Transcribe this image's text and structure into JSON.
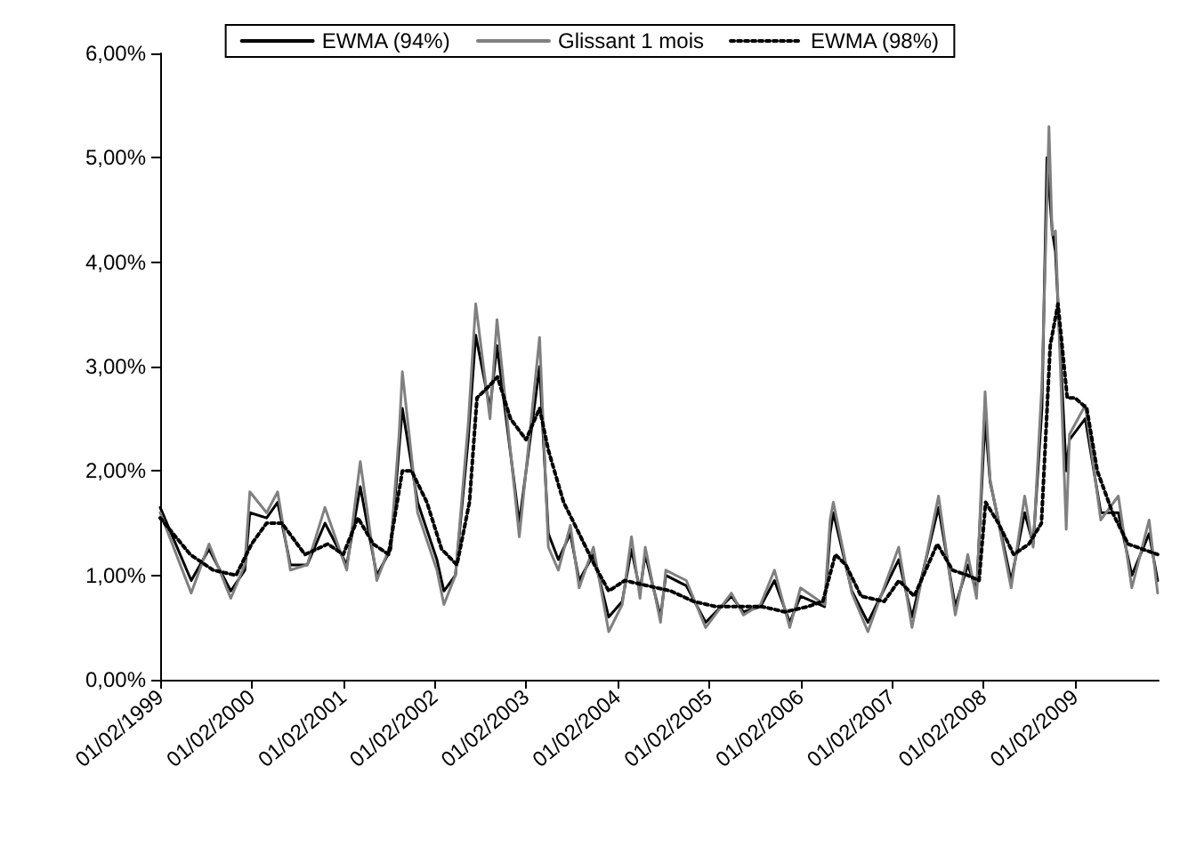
{
  "chart_data": {
    "type": "line",
    "xlim": [
      "1999-02-01",
      "2010-01-01"
    ],
    "xticks": [
      {
        "value": "1999-02-01",
        "label": "01/02/1999"
      },
      {
        "value": "2000-02-01",
        "label": "01/02/2000"
      },
      {
        "value": "2001-02-01",
        "label": "01/02/2001"
      },
      {
        "value": "2002-02-01",
        "label": "01/02/2002"
      },
      {
        "value": "2003-02-01",
        "label": "01/02/2003"
      },
      {
        "value": "2004-02-01",
        "label": "01/02/2004"
      },
      {
        "value": "2005-02-01",
        "label": "01/02/2005"
      },
      {
        "value": "2006-02-01",
        "label": "01/02/2006"
      },
      {
        "value": "2007-02-01",
        "label": "01/02/2007"
      },
      {
        "value": "2008-02-01",
        "label": "01/02/2008"
      },
      {
        "value": "2009-02-01",
        "label": "01/02/2009"
      }
    ],
    "ylim": [
      0,
      6
    ],
    "yticks": [
      {
        "value": 0,
        "label": "0,00%"
      },
      {
        "value": 1,
        "label": "1,00%"
      },
      {
        "value": 2,
        "label": "2,00%"
      },
      {
        "value": 3,
        "label": "3,00%"
      },
      {
        "value": 4,
        "label": "4,00%"
      },
      {
        "value": 5,
        "label": "5,00%"
      },
      {
        "value": 6,
        "label": "6,00%"
      }
    ],
    "grid": false,
    "legend": "top",
    "marker": "none",
    "series": [
      {
        "name": "EWMA (94%)",
        "color": "#000000",
        "line_style": "solid",
        "x": [
          "1999-02-01",
          "1999-06-05",
          "1999-08-15",
          "1999-11-10",
          "2000-01-05",
          "2000-01-25",
          "2000-04-01",
          "2000-05-15",
          "2000-07-05",
          "2000-09-10",
          "2000-11-20",
          "2001-02-15",
          "2001-04-10",
          "2001-06-15",
          "2001-08-10",
          "2001-09-25",
          "2001-11-25",
          "2002-02-10",
          "2002-03-10",
          "2002-04-25",
          "2002-06-15",
          "2002-07-15",
          "2002-09-10",
          "2002-10-08",
          "2003-01-05",
          "2003-03-27",
          "2003-05-01",
          "2003-06-10",
          "2003-07-28",
          "2003-09-01",
          "2003-10-28",
          "2003-12-28",
          "2004-02-20",
          "2004-03-28",
          "2004-05-01",
          "2004-05-22",
          "2004-07-22",
          "2004-08-12",
          "2004-11-02",
          "2005-01-18",
          "2005-05-01",
          "2005-06-18",
          "2005-08-25",
          "2005-10-20",
          "2005-12-20",
          "2006-02-01",
          "2006-05-08",
          "2006-05-30",
          "2006-06-12",
          "2006-08-25",
          "2006-10-28",
          "2007-02-28",
          "2007-04-22",
          "2007-08-06",
          "2007-10-12",
          "2007-12-01",
          "2008-01-05",
          "2008-02-08",
          "2008-02-28",
          "2008-05-22",
          "2008-07-15",
          "2008-08-18",
          "2008-09-22",
          "2008-10-12",
          "2008-11-02",
          "2008-11-15",
          "2008-12-28",
          "2009-01-10",
          "2009-03-14",
          "2009-05-15",
          "2009-07-24",
          "2009-09-16",
          "2009-11-24",
          "2009-12-28"
        ],
        "values": [
          1.65,
          0.95,
          1.25,
          0.85,
          1.05,
          1.6,
          1.55,
          1.7,
          1.1,
          1.1,
          1.5,
          1.1,
          1.85,
          1.0,
          1.25,
          2.6,
          1.7,
          1.15,
          0.85,
          1.0,
          2.3,
          3.3,
          2.6,
          3.2,
          1.5,
          3.0,
          1.4,
          1.15,
          1.4,
          0.95,
          1.2,
          0.6,
          0.75,
          1.25,
          0.85,
          1.2,
          0.6,
          1.0,
          0.9,
          0.55,
          0.8,
          0.65,
          0.7,
          0.95,
          0.55,
          0.8,
          0.7,
          1.4,
          1.6,
          0.85,
          0.55,
          1.15,
          0.6,
          1.65,
          0.7,
          1.1,
          0.85,
          2.5,
          1.9,
          0.95,
          1.6,
          1.3,
          2.6,
          5.0,
          4.3,
          4.1,
          2.0,
          2.3,
          2.5,
          1.6,
          1.6,
          1.0,
          1.4,
          0.95
        ]
      },
      {
        "name": "Glissant 1 mois",
        "color": "#808080",
        "line_style": "solid",
        "x": [
          "1999-02-01",
          "1999-06-05",
          "1999-08-15",
          "1999-11-10",
          "2000-01-05",
          "2000-01-25",
          "2000-04-01",
          "2000-05-15",
          "2000-07-05",
          "2000-09-10",
          "2000-11-20",
          "2001-02-15",
          "2001-04-10",
          "2001-06-15",
          "2001-08-10",
          "2001-09-12",
          "2001-09-25",
          "2001-11-25",
          "2002-02-10",
          "2002-03-10",
          "2002-04-25",
          "2002-06-15",
          "2002-07-15",
          "2002-09-10",
          "2002-10-08",
          "2003-01-05",
          "2003-03-27",
          "2003-05-01",
          "2003-06-10",
          "2003-07-28",
          "2003-09-01",
          "2003-10-28",
          "2003-12-28",
          "2004-02-20",
          "2004-03-28",
          "2004-05-01",
          "2004-05-22",
          "2004-07-22",
          "2004-08-12",
          "2004-11-02",
          "2005-01-18",
          "2005-05-01",
          "2005-06-18",
          "2005-08-25",
          "2005-10-20",
          "2005-12-20",
          "2006-02-01",
          "2006-05-08",
          "2006-05-30",
          "2006-06-12",
          "2006-08-25",
          "2006-10-28",
          "2007-02-28",
          "2007-04-22",
          "2007-08-06",
          "2007-10-12",
          "2007-12-01",
          "2008-01-05",
          "2008-02-08",
          "2008-02-28",
          "2008-05-22",
          "2008-07-15",
          "2008-08-18",
          "2008-09-22",
          "2008-10-20",
          "2008-11-02",
          "2008-11-15",
          "2008-12-28",
          "2009-01-10",
          "2009-03-14",
          "2009-05-15",
          "2009-07-24",
          "2009-09-16",
          "2009-11-24",
          "2009-12-28"
        ],
        "values": [
          1.6,
          0.83,
          1.3,
          0.78,
          1.1,
          1.8,
          1.6,
          1.8,
          1.05,
          1.1,
          1.65,
          1.05,
          2.09,
          0.95,
          1.3,
          2.35,
          2.95,
          1.6,
          1.05,
          0.72,
          1.0,
          2.45,
          3.6,
          2.5,
          3.45,
          1.37,
          3.28,
          1.27,
          1.05,
          1.48,
          0.88,
          1.27,
          0.46,
          0.72,
          1.37,
          0.78,
          1.27,
          0.55,
          1.05,
          0.95,
          0.5,
          0.83,
          0.62,
          0.72,
          1.05,
          0.5,
          0.88,
          0.72,
          1.53,
          1.7,
          0.83,
          0.46,
          1.27,
          0.5,
          1.76,
          0.62,
          1.2,
          0.78,
          2.76,
          1.92,
          0.88,
          1.76,
          1.27,
          2.84,
          5.3,
          4.26,
          4.3,
          1.44,
          2.35,
          2.63,
          1.53,
          1.76,
          0.88,
          1.53,
          0.83
        ]
      },
      {
        "name": "EWMA (98%)",
        "color": "#000000",
        "line_style": "dotted",
        "x": [
          "1999-02-01",
          "1999-06-01",
          "1999-09-01",
          "1999-12-01",
          "2000-02-01",
          "2000-04-01",
          "2000-06-01",
          "2000-09-01",
          "2000-12-01",
          "2001-02-01",
          "2001-04-01",
          "2001-06-01",
          "2001-08-01",
          "2001-09-25",
          "2001-11-01",
          "2002-01-01",
          "2002-03-01",
          "2002-05-01",
          "2002-06-20",
          "2002-07-20",
          "2002-09-01",
          "2002-10-10",
          "2002-12-01",
          "2003-02-01",
          "2003-03-27",
          "2003-05-01",
          "2003-07-01",
          "2003-09-01",
          "2003-11-01",
          "2003-12-28",
          "2004-03-01",
          "2004-06-01",
          "2004-09-01",
          "2004-12-01",
          "2005-03-01",
          "2005-06-01",
          "2005-09-01",
          "2005-12-01",
          "2006-03-01",
          "2006-05-01",
          "2006-06-20",
          "2006-08-01",
          "2006-10-01",
          "2007-01-01",
          "2007-03-01",
          "2007-05-01",
          "2007-08-01",
          "2007-10-01",
          "2007-12-01",
          "2008-01-15",
          "2008-02-10",
          "2008-04-01",
          "2008-06-01",
          "2008-08-01",
          "2008-09-20",
          "2008-10-25",
          "2008-11-25",
          "2009-01-01",
          "2009-02-01",
          "2009-03-20",
          "2009-05-01",
          "2009-07-01",
          "2009-09-01",
          "2009-12-28"
        ],
        "values": [
          1.55,
          1.2,
          1.05,
          1.0,
          1.3,
          1.5,
          1.5,
          1.2,
          1.3,
          1.2,
          1.55,
          1.3,
          1.2,
          2.0,
          2.0,
          1.7,
          1.25,
          1.1,
          1.7,
          2.7,
          2.8,
          2.9,
          2.5,
          2.3,
          2.6,
          2.2,
          1.7,
          1.4,
          1.1,
          0.85,
          0.95,
          0.9,
          0.85,
          0.75,
          0.7,
          0.7,
          0.7,
          0.65,
          0.7,
          0.75,
          1.2,
          1.1,
          0.8,
          0.75,
          0.95,
          0.8,
          1.3,
          1.05,
          1.0,
          0.95,
          1.7,
          1.5,
          1.2,
          1.3,
          1.5,
          3.2,
          3.6,
          2.7,
          2.7,
          2.6,
          2.0,
          1.6,
          1.3,
          1.2
        ]
      }
    ]
  }
}
